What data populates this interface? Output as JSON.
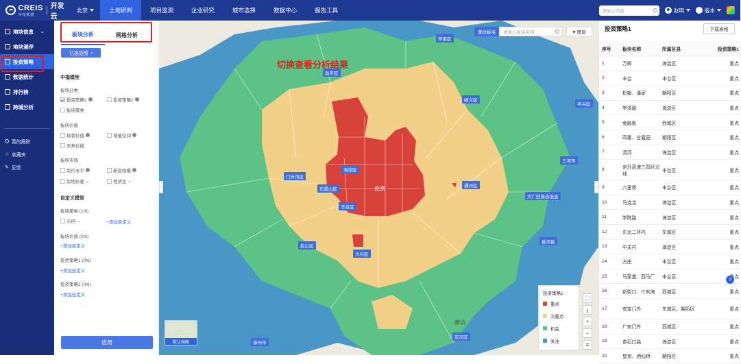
{
  "header": {
    "brand": "CREIS",
    "brand_sub": "中指数据",
    "app_name": "开发云",
    "city": "北京",
    "nav": [
      "土地研判",
      "项目监测",
      "企业研究",
      "城市选择",
      "数据中心",
      "报告工具"
    ],
    "active_nav": "土地研判",
    "search_placeholder": "请输入内容",
    "user_name": "赵明",
    "version_label": "版本"
  },
  "sidebar": {
    "items": [
      {
        "label": "地块信息"
      },
      {
        "label": "地块测评"
      },
      {
        "label": "投资策略"
      },
      {
        "label": "数据统计"
      },
      {
        "label": "排行榜"
      },
      {
        "label": "跨城分析"
      }
    ],
    "active": "投资策略",
    "sub_items": [
      {
        "label": "我的跟踪"
      },
      {
        "label": "收藏夹"
      },
      {
        "label": "反馈"
      }
    ]
  },
  "panel": {
    "tabs": [
      "板块分析",
      "网格分析"
    ],
    "active_tab": "板块分析",
    "range_button": "已选范围",
    "model_title": "中指模型",
    "groups": [
      {
        "title": "板块分类",
        "options": [
          {
            "label": "投资策略1",
            "checked": true
          },
          {
            "label": "投资策略2",
            "checked": false
          },
          {
            "label": "板块聚类",
            "checked": false
          }
        ]
      },
      {
        "title": "板块价值",
        "options": [
          {
            "label": "现状价值",
            "checked": false
          },
          {
            "label": "增值空间",
            "checked": false
          },
          {
            "label": "未来价值",
            "checked": false
          }
        ]
      },
      {
        "title": "板块市场",
        "options": [
          {
            "label": "房价水平",
            "checked": false
          },
          {
            "label": "新房规模",
            "checked": false
          },
          {
            "label": "房地价差",
            "checked": false
          },
          {
            "label": "地货比",
            "checked": false
          }
        ]
      }
    ],
    "custom_title": "自定义模型",
    "custom_groups": [
      {
        "title": "板块聚类 (1/6)",
        "example": "示例"
      },
      {
        "title": "板块价值 (0/6)"
      },
      {
        "title": "投资策略1 (0/6)"
      },
      {
        "title": "投资策略2 (0/6)"
      }
    ],
    "add_custom": "+添加自定义",
    "apply_button": "应用"
  },
  "map": {
    "annotation": "切换查看分析结果",
    "search_button": "查找板块",
    "search_placeholder": "请输入板块名称",
    "layer_button": "图层",
    "thumbnail_label": "默认地图",
    "district_labels": [
      {
        "name": "怀柔区"
      },
      {
        "name": "昌平区"
      },
      {
        "name": "顺义区"
      },
      {
        "name": "平谷区"
      },
      {
        "name": "海淀区"
      },
      {
        "name": "门头沟区"
      },
      {
        "name": "石景山区"
      },
      {
        "name": "北京"
      },
      {
        "name": "丰台区"
      },
      {
        "name": "通州区"
      },
      {
        "name": "房山区"
      },
      {
        "name": "大兴区"
      },
      {
        "name": "安次区"
      },
      {
        "name": "三河市"
      },
      {
        "name": "大厂回族自治县"
      },
      {
        "name": "香河县"
      },
      {
        "name": "涿州市"
      },
      {
        "name": "廊坊"
      }
    ],
    "legend": {
      "title": "投资策略1",
      "items": [
        {
          "label": "重点",
          "color": "#d9413b"
        },
        {
          "label": "次重点",
          "color": "#f3d087"
        },
        {
          "label": "机会",
          "color": "#5cc285"
        },
        {
          "label": "关注",
          "color": "#4a96c6"
        }
      ]
    }
  },
  "table": {
    "title": "投资策略1",
    "download_button": "下载表格",
    "columns": [
      "序号",
      "板块名称",
      "所属区县",
      "投资策略1"
    ],
    "rows": [
      [
        "1",
        "万柳",
        "海淀区",
        "重点"
      ],
      [
        "2",
        "丰台",
        "丰台区",
        "重点"
      ],
      [
        "3",
        "松榆、潘家",
        "朝阳区",
        "重点"
      ],
      [
        "4",
        "学清路",
        "海淀区",
        "重点"
      ],
      [
        "5",
        "金融街",
        "西城区",
        "重点"
      ],
      [
        "6",
        "四惠、甘露园",
        "朝阳区",
        "重点"
      ],
      [
        "7",
        "清河",
        "海淀区",
        "重点"
      ],
      [
        "8",
        "京开高速三四环沿线",
        "丰台区",
        "重点"
      ],
      [
        "9",
        "六里桥",
        "丰台区",
        "重点"
      ],
      [
        "10",
        "马连洼",
        "海淀区",
        "重点"
      ],
      [
        "11",
        "学院路",
        "海淀区",
        "重点"
      ],
      [
        "12",
        "东北二环内",
        "东城区",
        "重点"
      ],
      [
        "13",
        "中关村",
        "海淀区",
        "重点"
      ],
      [
        "14",
        "方庄",
        "丰台区",
        "重点"
      ],
      [
        "15",
        "马家堡、西马厂",
        "丰台区",
        "重点"
      ],
      [
        "16",
        "新街口、什刹海",
        "西城区",
        "重点"
      ],
      [
        "17",
        "安定门外",
        "东城区、朝阳区",
        "重点"
      ],
      [
        "18",
        "广安门外",
        "西城区",
        "重点"
      ],
      [
        "19",
        "杏石口路",
        "海淀区",
        "重点"
      ],
      [
        "20",
        "望京、酒仙桥",
        "朝阳区",
        "重点"
      ]
    ]
  }
}
